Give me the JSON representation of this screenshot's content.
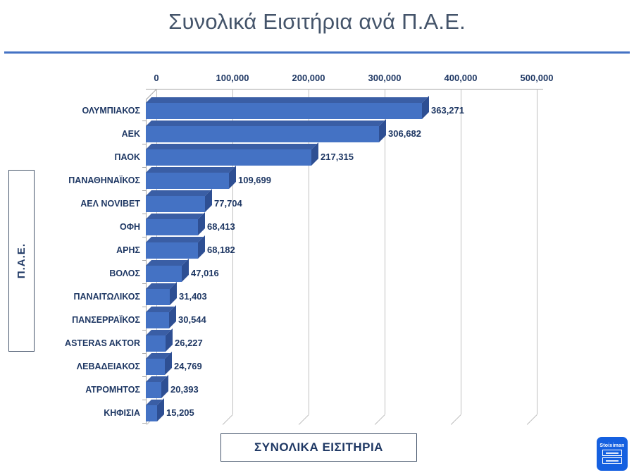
{
  "title": "Συνολικά Εισιτήρια ανά Π.Α.Ε.",
  "chart_data": {
    "type": "bar",
    "orientation": "horizontal",
    "style": "3d",
    "title": "Συνολικά Εισιτήρια ανά Π.Α.Ε.",
    "categories": [
      "ΟΛΥΜΠΙΑΚΟΣ",
      "ΑΕΚ",
      "ΠΑΟΚ",
      "ΠΑΝΑΘΗΝΑΪΚΟΣ",
      "ΑΕΛ NOVIBET",
      "ΟΦΗ",
      "ΑΡΗΣ",
      "ΒΟΛΟΣ",
      "ΠΑΝΑΙΤΩΛΙΚΟΣ",
      "ΠΑΝΣΕΡΡΑΪΚΟΣ",
      "ASTERAS AKTOR",
      "ΛΕΒΑΔΕΙΑΚΟΣ",
      "ΑΤΡΟΜΗΤΟΣ",
      "ΚΗΦΙΣΙΑ"
    ],
    "values": [
      363271,
      306682,
      217315,
      109699,
      77704,
      68413,
      68182,
      47016,
      31403,
      30544,
      26227,
      24769,
      20393,
      15205
    ],
    "value_labels": [
      "363,271",
      "306,682",
      "217,315",
      "109,699",
      "77,704",
      "68,413",
      "68,182",
      "47,016",
      "31,403",
      "30,544",
      "26,227",
      "24,769",
      "20,393",
      "15,205"
    ],
    "x_ticks": [
      "0",
      "100,000",
      "200,000",
      "300,000",
      "400,000",
      "500,000"
    ],
    "xlim": [
      0,
      500000
    ],
    "xlabel": "ΣΥΝΟΛΙΚΑ ΕΙΣΙΤΗΡΙΑ",
    "ylabel": "Π.Α.Ε.",
    "grid": true,
    "legend": "none",
    "colors": {
      "bar_front": "#4472C4",
      "bar_top": "#3A5EA5",
      "bar_side": "#2E4F93",
      "label": "#1F3864",
      "gridline": "#BFBFBF",
      "axis": "#A6A6A6",
      "title": "#44546A",
      "title_rule": "#4472C4"
    }
  },
  "footer_logo": {
    "text": "Stoiximan",
    "background": "#1560E0"
  }
}
